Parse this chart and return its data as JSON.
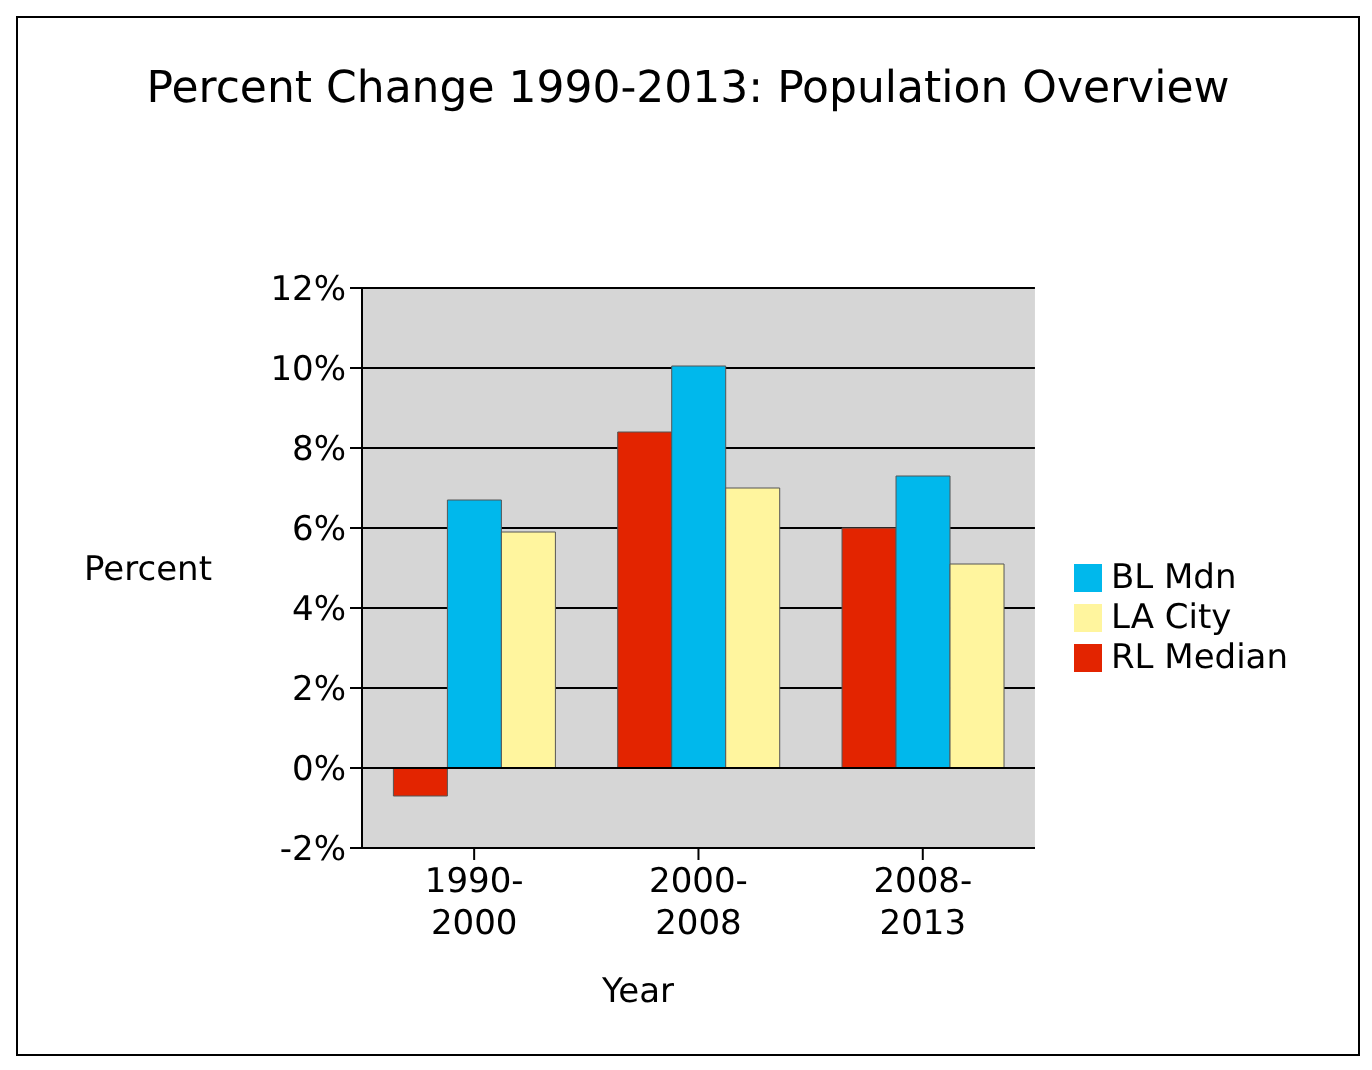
{
  "chart_data": {
    "type": "bar",
    "title": "Percent Change 1990-2013: Population Overview",
    "xlabel": "Year",
    "ylabel": "Percent",
    "categories": [
      "1990-2000",
      "2000-2008",
      "2008-2013"
    ],
    "series": [
      {
        "name": "RL Median",
        "color": "#e32400",
        "values": [
          -0.7,
          8.4,
          6.0
        ]
      },
      {
        "name": "BL Mdn",
        "color": "#00b8ec",
        "values": [
          6.7,
          10.05,
          7.3
        ]
      },
      {
        "name": "LA City",
        "color": "#fff59e",
        "values": [
          5.9,
          7.0,
          5.1
        ]
      }
    ],
    "ylim": [
      -2,
      12
    ],
    "yticks": [
      {
        "value": -2,
        "label": "-2%"
      },
      {
        "value": 0,
        "label": "0%"
      },
      {
        "value": 2,
        "label": "2%"
      },
      {
        "value": 4,
        "label": "4%"
      },
      {
        "value": 6,
        "label": "6%"
      },
      {
        "value": 8,
        "label": "8%"
      },
      {
        "value": 10,
        "label": "10%"
      },
      {
        "value": 12,
        "label": "12%"
      }
    ],
    "grid": "y",
    "legend": "right"
  }
}
